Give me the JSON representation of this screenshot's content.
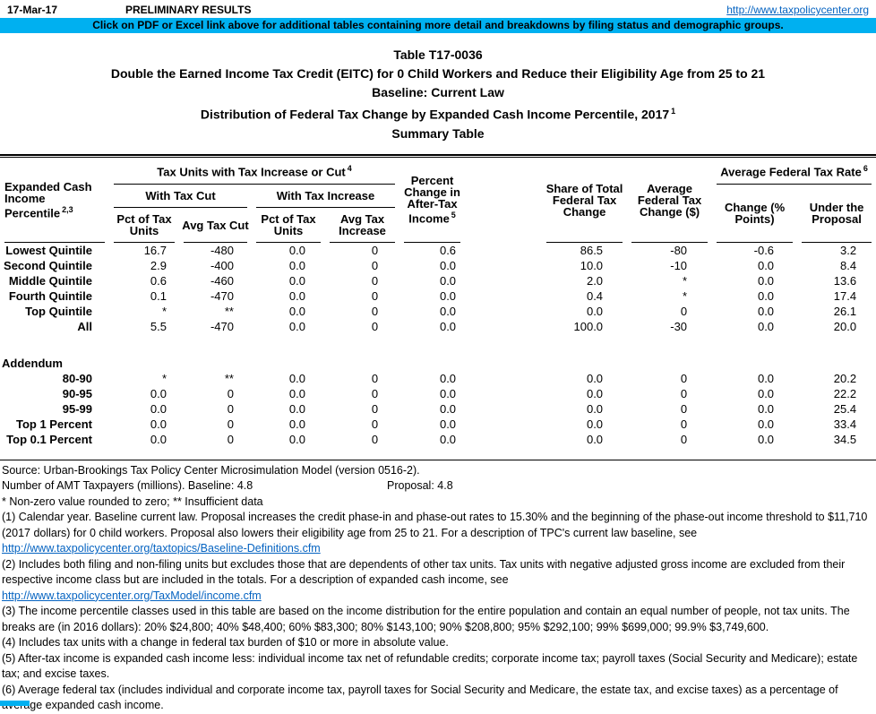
{
  "header": {
    "date": "17-Mar-17",
    "preliminary": "PRELIMINARY RESULTS",
    "url": "http://www.taxpolicycenter.org",
    "banner": "Click on PDF or Excel link above for additional tables containing more detail and breakdowns by filing status and demographic groups.",
    "banner_color": "#00B0F0"
  },
  "titles": [
    "Table T17-0036",
    "Double the Earned Income Tax Credit (EITC) for 0 Child Workers and Reduce their Eligibility Age from 25 to 21",
    "Baseline: Current Law",
    "Distribution of Federal Tax Change by Expanded Cash Income Percentile, 2017",
    "Summary Table"
  ],
  "title_sup": "1",
  "table": {
    "row_header": {
      "line1": "Expanded Cash Income",
      "line2": "Percentile",
      "sup": "2,3"
    },
    "groups": {
      "tax_units": {
        "label": "Tax Units with Tax Increase or Cut",
        "sup": "4"
      },
      "with_tax_cut": "With Tax Cut",
      "with_tax_increase": "With Tax Increase",
      "avg_rate": {
        "label": "Average Federal Tax Rate",
        "sup": "6"
      }
    },
    "columns": {
      "pct_units_cut": "Pct of Tax Units",
      "avg_tax_cut": "Avg Tax Cut",
      "pct_units_inc": "Pct of Tax Units",
      "avg_tax_increase": "Avg Tax Increase",
      "pct_change": {
        "label": "Percent Change in After-Tax Income",
        "sup": "5"
      },
      "share_total": "Share of Total Federal Tax Change",
      "avg_change": "Average Federal Tax Change ($)",
      "rate_change": "Change (% Points)",
      "rate_proposal": "Under the Proposal"
    },
    "rows": [
      [
        "Lowest Quintile",
        "16.7",
        "-480",
        "0.0",
        "0",
        "0.6",
        "86.5",
        "-80",
        "-0.6",
        "3.2"
      ],
      [
        "Second Quintile",
        "2.9",
        "-400",
        "0.0",
        "0",
        "0.0",
        "10.0",
        "-10",
        "0.0",
        "8.4"
      ],
      [
        "Middle Quintile",
        "0.6",
        "-460",
        "0.0",
        "0",
        "0.0",
        "2.0",
        "*",
        "0.0",
        "13.6"
      ],
      [
        "Fourth Quintile",
        "0.1",
        "-470",
        "0.0",
        "0",
        "0.0",
        "0.4",
        "*",
        "0.0",
        "17.4"
      ],
      [
        "Top Quintile",
        "*",
        "**",
        "0.0",
        "0",
        "0.0",
        "0.0",
        "0",
        "0.0",
        "26.1"
      ],
      [
        "All",
        "5.5",
        "-470",
        "0.0",
        "0",
        "0.0",
        "100.0",
        "-30",
        "0.0",
        "20.0"
      ]
    ],
    "addendum_label": "Addendum",
    "addendum_rows": [
      [
        "80-90",
        "*",
        "**",
        "0.0",
        "0",
        "0.0",
        "0.0",
        "0",
        "0.0",
        "20.2"
      ],
      [
        "90-95",
        "0.0",
        "0",
        "0.0",
        "0",
        "0.0",
        "0.0",
        "0",
        "0.0",
        "22.2"
      ],
      [
        "95-99",
        "0.0",
        "0",
        "0.0",
        "0",
        "0.0",
        "0.0",
        "0",
        "0.0",
        "25.4"
      ],
      [
        "Top 1 Percent",
        "0.0",
        "0",
        "0.0",
        "0",
        "0.0",
        "0.0",
        "0",
        "0.0",
        "33.4"
      ],
      [
        "Top 0.1 Percent",
        "0.0",
        "0",
        "0.0",
        "0",
        "0.0",
        "0.0",
        "0",
        "0.0",
        "34.5"
      ]
    ]
  },
  "footer": {
    "source": "Source: Urban-Brookings Tax Policy Center Microsimulation Model (version 0516-2).",
    "amt_baseline": "Number of AMT Taxpayers (millions).  Baseline: 4.8",
    "amt_proposal": "Proposal: 4.8",
    "stars": "* Non-zero value rounded to zero; ** Insufficient data",
    "notes": [
      {
        "text": "(1) Calendar year. Baseline current law. Proposal increases the credit phase-in and phase-out rates to 15.30% and the beginning of the phase-out income threshold to $11,710 (2017 dollars) for 0 child workers. Proposal also lowers their eligibility age from 25 to 21. For a description of TPC's current law baseline, see",
        "link": "http://www.taxpolicycenter.org/taxtopics/Baseline-Definitions.cfm"
      },
      {
        "text": "(2) Includes both filing and non-filing units but excludes those that are dependents of other tax units. Tax units with negative adjusted gross income are excluded from their respective income class but are included in the totals. For a description of expanded cash income, see",
        "link": "http://www.taxpolicycenter.org/TaxModel/income.cfm"
      },
      {
        "text": "(3) The income percentile classes used in this table are based on the income distribution for the entire population and contain an equal number of people, not tax units. The breaks are (in 2016 dollars): 20% $24,800; 40% $48,400; 60% $83,300; 80% $143,100; 90% $208,800; 95% $292,100; 99% $699,000; 99.9% $3,749,600."
      },
      {
        "text": "(4) Includes tax units with a change in federal tax burden of $10 or more in absolute value."
      },
      {
        "text": "(5) After-tax income is expanded cash income less: individual income tax net of refundable credits; corporate income tax; payroll taxes (Social Security and Medicare); estate tax; and excise taxes."
      },
      {
        "text": "(6) Average federal tax (includes individual and corporate income tax, payroll taxes for Social Security and Medicare, the estate tax, and excise taxes) as a percentage of average expanded cash income."
      }
    ]
  }
}
